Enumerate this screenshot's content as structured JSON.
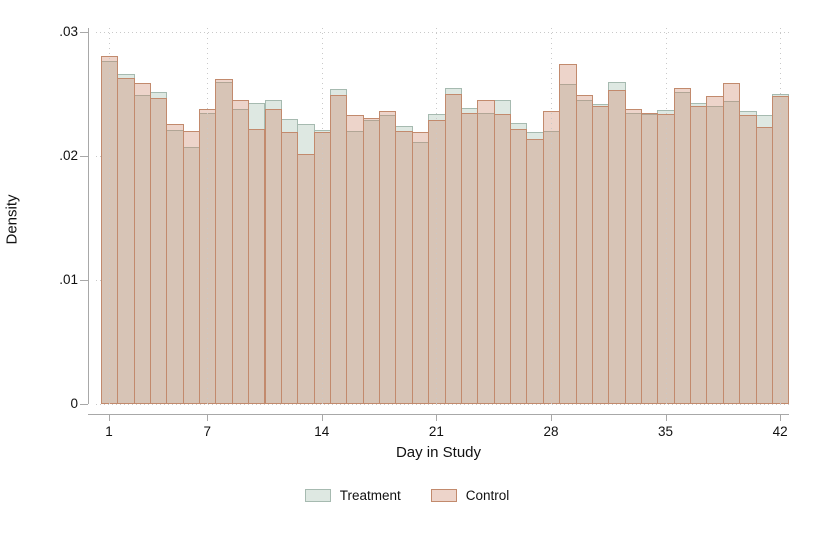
{
  "chart_data": {
    "type": "bar",
    "subtype": "overlaid-histogram",
    "title": "",
    "xlabel": "Day in Study",
    "ylabel": "Density",
    "ylim": [
      0,
      0.03
    ],
    "yticks": [
      0,
      0.01,
      0.02,
      0.03
    ],
    "ytick_labels": [
      "0",
      ".01",
      ".02",
      ".03"
    ],
    "xticks": [
      1,
      7,
      14,
      21,
      28,
      35,
      42
    ],
    "xtick_labels": [
      "1",
      "7",
      "14",
      "21",
      "28",
      "35",
      "42"
    ],
    "grid": "dotted gridlines at labeled ticks, horizontal and vertical",
    "legend_position": "bottom-center",
    "x": [
      1,
      2,
      3,
      4,
      5,
      6,
      7,
      8,
      9,
      10,
      11,
      12,
      13,
      14,
      15,
      16,
      17,
      18,
      19,
      20,
      21,
      22,
      23,
      24,
      25,
      26,
      27,
      28,
      29,
      30,
      31,
      32,
      33,
      34,
      35,
      36,
      37,
      38,
      39,
      40,
      41,
      42
    ],
    "series": [
      {
        "name": "Treatment",
        "fill": "#dee8e2",
        "border": "#a6bab0",
        "values": [
          0.0277,
          0.0266,
          0.0249,
          0.0252,
          0.0221,
          0.0207,
          0.0235,
          0.026,
          0.0238,
          0.0243,
          0.0245,
          0.023,
          0.0226,
          0.0221,
          0.0254,
          0.022,
          0.0229,
          0.0233,
          0.0224,
          0.0211,
          0.0234,
          0.0255,
          0.0239,
          0.0235,
          0.0245,
          0.0227,
          0.0219,
          0.022,
          0.0258,
          0.0245,
          0.0242,
          0.026,
          0.0235,
          0.0234,
          0.0237,
          0.0252,
          0.0243,
          0.024,
          0.0244,
          0.0236,
          0.0233,
          0.025
        ]
      },
      {
        "name": "Control",
        "fill": "rgba(200,125,95,0.33)",
        "border": "#c28a6d",
        "values": [
          0.0281,
          0.0263,
          0.0259,
          0.0247,
          0.0226,
          0.022,
          0.0238,
          0.0262,
          0.0245,
          0.0222,
          0.0238,
          0.0219,
          0.0202,
          0.0219,
          0.0249,
          0.0233,
          0.0231,
          0.0236,
          0.022,
          0.0219,
          0.0229,
          0.025,
          0.0235,
          0.0245,
          0.0234,
          0.0222,
          0.0214,
          0.0236,
          0.0274,
          0.0249,
          0.024,
          0.0253,
          0.0238,
          0.0235,
          0.0234,
          0.0255,
          0.024,
          0.0248,
          0.0259,
          0.0233,
          0.0223,
          0.0248
        ]
      }
    ]
  },
  "colors": {
    "axis_line": "#a8a8a8",
    "grid_dot": "#c9c9c9",
    "text": "#111111",
    "background": "#ffffff"
  }
}
